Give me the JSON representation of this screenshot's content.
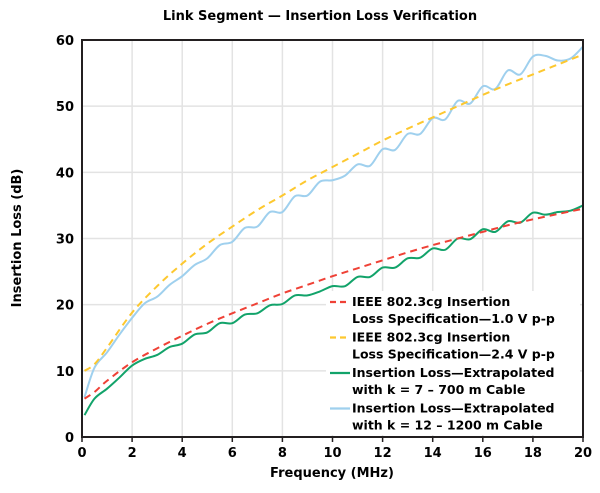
{
  "chart_data": {
    "type": "line",
    "title": "Link Segment — Insertion Loss Verification",
    "xlabel": "Frequency (MHz)",
    "ylabel": "Insertion Loss (dB)",
    "xlim": [
      0,
      20
    ],
    "ylim": [
      0,
      60
    ],
    "xticks": [
      0,
      2,
      4,
      6,
      8,
      10,
      12,
      14,
      16,
      18,
      20
    ],
    "yticks": [
      0,
      10,
      20,
      30,
      40,
      50,
      60
    ],
    "grid": true,
    "legend_placement": "bottom-right",
    "series": [
      {
        "name": [
          "IEEE 802.3cg Insertion",
          "Loss Specification—1.0 V p-p"
        ],
        "color": "#ef4136",
        "style": "dashed",
        "x": [
          0.1,
          0.5,
          1,
          2,
          3,
          4,
          5,
          6,
          7,
          8,
          9,
          10,
          11,
          12,
          13,
          14,
          15,
          16,
          17,
          18,
          19,
          20
        ],
        "y": [
          5.8,
          6.8,
          8.5,
          11.3,
          13.4,
          15.3,
          17.1,
          18.7,
          20.2,
          21.7,
          23.0,
          24.3,
          25.5,
          26.7,
          27.9,
          29.0,
          30.0,
          31.0,
          32.0,
          32.9,
          33.7,
          34.5
        ]
      },
      {
        "name": [
          "IEEE 802.3cg Insertion",
          "Loss Specification—2.4 V p-p"
        ],
        "color": "#fdc82f",
        "style": "dashed",
        "x": [
          0.1,
          0.5,
          1,
          2,
          3,
          4,
          5,
          6,
          7,
          8,
          9,
          10,
          11,
          12,
          13,
          14,
          15,
          16,
          17,
          18,
          19,
          20
        ],
        "y": [
          10.0,
          11.0,
          13.5,
          18.8,
          22.8,
          26.2,
          29.2,
          31.8,
          34.3,
          36.5,
          38.8,
          40.8,
          42.8,
          44.8,
          46.6,
          48.3,
          50.0,
          51.7,
          53.3,
          54.8,
          56.3,
          57.8
        ]
      },
      {
        "name": [
          "Insertion Loss—Extrapolated",
          "with k = 7 – 700 m Cable"
        ],
        "color": "#12a36a",
        "style": "solid",
        "x": [
          0.1,
          0.5,
          1,
          1.5,
          2,
          2.5,
          3,
          3.5,
          4,
          4.5,
          5,
          5.5,
          6,
          6.5,
          7,
          7.5,
          8,
          8.5,
          9,
          9.5,
          10,
          10.5,
          11,
          11.5,
          12,
          12.5,
          13,
          13.5,
          14,
          14.5,
          15,
          15.5,
          16,
          16.5,
          17,
          17.5,
          18,
          18.5,
          19,
          19.5,
          20
        ],
        "y": [
          3.3,
          5.8,
          7.3,
          9.0,
          10.8,
          11.8,
          12.4,
          13.6,
          14.1,
          15.5,
          15.8,
          17.2,
          17.2,
          18.5,
          18.7,
          19.9,
          20.1,
          21.4,
          21.4,
          22.0,
          22.8,
          22.8,
          24.2,
          24.2,
          25.6,
          25.6,
          27.0,
          27.1,
          28.5,
          28.3,
          30.0,
          29.9,
          31.4,
          31.0,
          32.6,
          32.4,
          33.9,
          33.6,
          34.0,
          34.2,
          35.0
        ]
      },
      {
        "name": [
          "Insertion Loss—Extrapolated",
          "with k = 12 – 1200 m Cable"
        ],
        "color": "#9fd0ee",
        "style": "solid",
        "x": [
          0.1,
          0.5,
          1,
          1.5,
          2,
          2.5,
          3,
          3.5,
          4,
          4.5,
          5,
          5.5,
          6,
          6.5,
          7,
          7.5,
          8,
          8.5,
          9,
          9.5,
          10,
          10.5,
          11,
          11.5,
          12,
          12.5,
          13,
          13.5,
          14,
          14.5,
          15,
          15.5,
          16,
          16.5,
          17,
          17.5,
          18,
          18.5,
          19,
          19.5,
          20
        ],
        "y": [
          6.0,
          10.5,
          12.8,
          15.5,
          18.0,
          20.2,
          21.2,
          23.0,
          24.3,
          26.0,
          27.0,
          29.0,
          29.5,
          31.6,
          31.8,
          34.0,
          34.0,
          36.4,
          36.5,
          38.6,
          38.8,
          39.5,
          41.2,
          41.0,
          43.5,
          43.4,
          45.8,
          45.8,
          48.2,
          48.0,
          50.8,
          50.4,
          53.0,
          52.6,
          55.4,
          54.8,
          57.5,
          57.6,
          56.9,
          57.2,
          59.0
        ]
      }
    ]
  }
}
